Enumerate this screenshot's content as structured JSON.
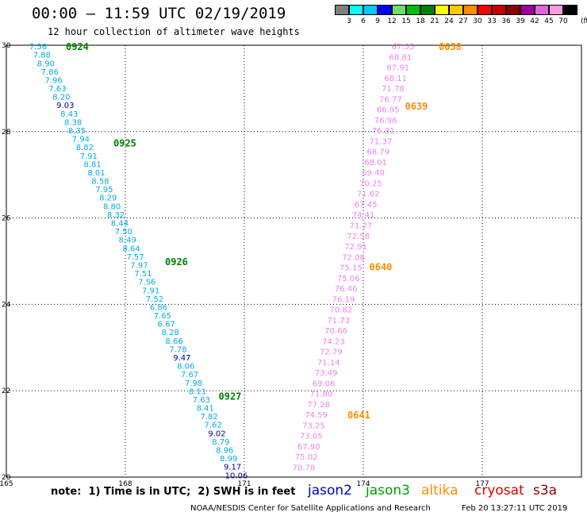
{
  "header": {
    "title": "00:00 — 11:59 UTC 02/19/2019",
    "subtitle": "12 hour collection of altimeter wave heights"
  },
  "legend": {
    "unit": "(ft)",
    "colors": [
      "#808080",
      "#00ffff",
      "#00c8ff",
      "#0000ff",
      "#6edc6e",
      "#00c000",
      "#008000",
      "#ffff00",
      "#ffc800",
      "#ff8c00",
      "#ff0000",
      "#c80000",
      "#8b0000",
      "#a000a0",
      "#dd66dd",
      "#ff99dd",
      "#000000"
    ],
    "labels": [
      "3",
      "6",
      "9",
      "12",
      "15",
      "18",
      "21",
      "24",
      "27",
      "30",
      "33",
      "36",
      "39",
      "42",
      "45",
      "70"
    ]
  },
  "axes": {
    "lon_ticks": [
      "165",
      "168",
      "171",
      "174",
      "177"
    ],
    "lat_ticks": [
      "30",
      "28",
      "26",
      "24",
      "22",
      "20"
    ]
  },
  "chart_data": {
    "type": "map",
    "region": {
      "lon_range": [
        165,
        179.5
      ],
      "lat_range": [
        20,
        30
      ]
    },
    "grid": "dotted",
    "track_colors": {
      "#00ace6": "jason3 low",
      "#00009e": "jason3 high",
      "#ee82ee": "altika",
      "#008000": "jason3 time label",
      "#ff8c00": "altika time label"
    },
    "tracks": [
      {
        "satellite": "jason3",
        "start": {
          "lon": 165.8,
          "lat": 29.98
        },
        "end": {
          "lon": 170.8,
          "lat": 20.05
        },
        "values": [
          "7.58",
          "7.88",
          "8.90",
          "7.86",
          "7.96",
          "7.63",
          "8.20",
          "9.03",
          "8.43",
          "8.38",
          "8.35",
          "7.94",
          "8.82",
          "7.91",
          "8.81",
          "8.01",
          "8.58",
          "7.95",
          "8.29",
          "8.80",
          "8.32",
          "8.44",
          "7.50",
          "8.49",
          "8.64",
          "7.57",
          "7.97",
          "7.51",
          "7.56",
          "7.91",
          "7.52",
          "6.86",
          "7.65",
          "6.67",
          "8.28",
          "8.66",
          "7.78",
          "9.47",
          "8.06",
          "7.67",
          "7.98",
          "8.11",
          "7.63",
          "8.41",
          "7.82",
          "7.62",
          "9.02",
          "8.79",
          "8.96",
          "8.99",
          "9.17",
          "10.06"
        ],
        "time_labels": [
          {
            "text": "0924",
            "lon": 166.5,
            "lat": 29.98
          },
          {
            "text": "0925",
            "lon": 167.7,
            "lat": 27.75
          },
          {
            "text": "0926",
            "lon": 169.0,
            "lat": 25.0
          },
          {
            "text": "0927",
            "lon": 170.35,
            "lat": 21.88
          }
        ]
      },
      {
        "satellite": "altika",
        "start": {
          "lon": 175.0,
          "lat": 29.98
        },
        "end": {
          "lon": 172.5,
          "lat": 20.23
        },
        "values": [
          "67.55",
          "68.81",
          "67.91",
          "68.11",
          "71.78",
          "76.77",
          "66.95",
          "76.96",
          "76.31",
          "71.37",
          "68.79",
          "68.01",
          "69.40",
          "70.25",
          "71.62",
          "67.45",
          "74.41",
          "71.27",
          "72.58",
          "72.91",
          "72.08",
          "75.15",
          "75.06",
          "76.46",
          "76.19",
          "70.82",
          "71.73",
          "70.66",
          "74.23",
          "72.79",
          "71.14",
          "73.49",
          "69.06",
          "71.80",
          "77.28",
          "74.59",
          "73.25",
          "73.05",
          "67.90",
          "75.02",
          "70.78"
        ],
        "time_labels": [
          {
            "text": "0638",
            "lon": 175.9,
            "lat": 29.98
          },
          {
            "text": "0639",
            "lon": 175.05,
            "lat": 28.6
          },
          {
            "text": "0640",
            "lon": 174.15,
            "lat": 24.88
          },
          {
            "text": "0641",
            "lon": 173.6,
            "lat": 21.45
          }
        ]
      }
    ]
  },
  "footer": {
    "note": "note:  1) Time is in UTC;  2) SWH is in feet",
    "satellites": [
      {
        "name": "jason2",
        "color": "#0000cc"
      },
      {
        "name": "jason3",
        "color": "#00a000"
      },
      {
        "name": "altika",
        "color": "#ff8c00"
      },
      {
        "name": "cryosat",
        "color": "#dd0000"
      },
      {
        "name": "s3a",
        "color": "#8b0000"
      }
    ],
    "credit": "NOAA/NESDIS Center for Satellite Applications and Research",
    "timestamp": "Feb 20 13:27:11 UTC 2019"
  }
}
